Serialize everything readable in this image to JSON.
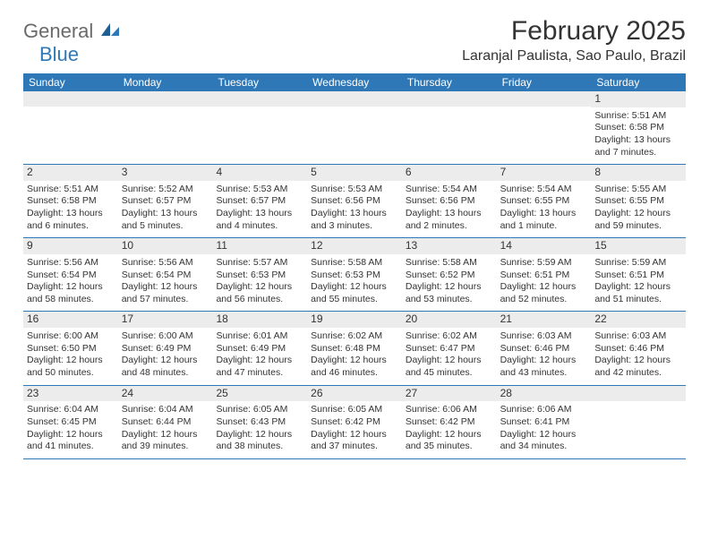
{
  "logo": {
    "text1": "General",
    "text2": "Blue"
  },
  "title": "February 2025",
  "location": "Laranjal Paulista, Sao Paulo, Brazil",
  "colors": {
    "header_bar": "#2f78b7",
    "daynum_bg": "#ececec",
    "text": "#333333",
    "logo_gray": "#6a6a6a",
    "logo_blue": "#2f78b7"
  },
  "weekdays": [
    "Sunday",
    "Monday",
    "Tuesday",
    "Wednesday",
    "Thursday",
    "Friday",
    "Saturday"
  ],
  "weeks": [
    [
      {
        "n": "",
        "sr": "",
        "ss": "",
        "dl1": "",
        "dl2": ""
      },
      {
        "n": "",
        "sr": "",
        "ss": "",
        "dl1": "",
        "dl2": ""
      },
      {
        "n": "",
        "sr": "",
        "ss": "",
        "dl1": "",
        "dl2": ""
      },
      {
        "n": "",
        "sr": "",
        "ss": "",
        "dl1": "",
        "dl2": ""
      },
      {
        "n": "",
        "sr": "",
        "ss": "",
        "dl1": "",
        "dl2": ""
      },
      {
        "n": "",
        "sr": "",
        "ss": "",
        "dl1": "",
        "dl2": ""
      },
      {
        "n": "1",
        "sr": "Sunrise: 5:51 AM",
        "ss": "Sunset: 6:58 PM",
        "dl1": "Daylight: 13 hours",
        "dl2": "and 7 minutes."
      }
    ],
    [
      {
        "n": "2",
        "sr": "Sunrise: 5:51 AM",
        "ss": "Sunset: 6:58 PM",
        "dl1": "Daylight: 13 hours",
        "dl2": "and 6 minutes."
      },
      {
        "n": "3",
        "sr": "Sunrise: 5:52 AM",
        "ss": "Sunset: 6:57 PM",
        "dl1": "Daylight: 13 hours",
        "dl2": "and 5 minutes."
      },
      {
        "n": "4",
        "sr": "Sunrise: 5:53 AM",
        "ss": "Sunset: 6:57 PM",
        "dl1": "Daylight: 13 hours",
        "dl2": "and 4 minutes."
      },
      {
        "n": "5",
        "sr": "Sunrise: 5:53 AM",
        "ss": "Sunset: 6:56 PM",
        "dl1": "Daylight: 13 hours",
        "dl2": "and 3 minutes."
      },
      {
        "n": "6",
        "sr": "Sunrise: 5:54 AM",
        "ss": "Sunset: 6:56 PM",
        "dl1": "Daylight: 13 hours",
        "dl2": "and 2 minutes."
      },
      {
        "n": "7",
        "sr": "Sunrise: 5:54 AM",
        "ss": "Sunset: 6:55 PM",
        "dl1": "Daylight: 13 hours",
        "dl2": "and 1 minute."
      },
      {
        "n": "8",
        "sr": "Sunrise: 5:55 AM",
        "ss": "Sunset: 6:55 PM",
        "dl1": "Daylight: 12 hours",
        "dl2": "and 59 minutes."
      }
    ],
    [
      {
        "n": "9",
        "sr": "Sunrise: 5:56 AM",
        "ss": "Sunset: 6:54 PM",
        "dl1": "Daylight: 12 hours",
        "dl2": "and 58 minutes."
      },
      {
        "n": "10",
        "sr": "Sunrise: 5:56 AM",
        "ss": "Sunset: 6:54 PM",
        "dl1": "Daylight: 12 hours",
        "dl2": "and 57 minutes."
      },
      {
        "n": "11",
        "sr": "Sunrise: 5:57 AM",
        "ss": "Sunset: 6:53 PM",
        "dl1": "Daylight: 12 hours",
        "dl2": "and 56 minutes."
      },
      {
        "n": "12",
        "sr": "Sunrise: 5:58 AM",
        "ss": "Sunset: 6:53 PM",
        "dl1": "Daylight: 12 hours",
        "dl2": "and 55 minutes."
      },
      {
        "n": "13",
        "sr": "Sunrise: 5:58 AM",
        "ss": "Sunset: 6:52 PM",
        "dl1": "Daylight: 12 hours",
        "dl2": "and 53 minutes."
      },
      {
        "n": "14",
        "sr": "Sunrise: 5:59 AM",
        "ss": "Sunset: 6:51 PM",
        "dl1": "Daylight: 12 hours",
        "dl2": "and 52 minutes."
      },
      {
        "n": "15",
        "sr": "Sunrise: 5:59 AM",
        "ss": "Sunset: 6:51 PM",
        "dl1": "Daylight: 12 hours",
        "dl2": "and 51 minutes."
      }
    ],
    [
      {
        "n": "16",
        "sr": "Sunrise: 6:00 AM",
        "ss": "Sunset: 6:50 PM",
        "dl1": "Daylight: 12 hours",
        "dl2": "and 50 minutes."
      },
      {
        "n": "17",
        "sr": "Sunrise: 6:00 AM",
        "ss": "Sunset: 6:49 PM",
        "dl1": "Daylight: 12 hours",
        "dl2": "and 48 minutes."
      },
      {
        "n": "18",
        "sr": "Sunrise: 6:01 AM",
        "ss": "Sunset: 6:49 PM",
        "dl1": "Daylight: 12 hours",
        "dl2": "and 47 minutes."
      },
      {
        "n": "19",
        "sr": "Sunrise: 6:02 AM",
        "ss": "Sunset: 6:48 PM",
        "dl1": "Daylight: 12 hours",
        "dl2": "and 46 minutes."
      },
      {
        "n": "20",
        "sr": "Sunrise: 6:02 AM",
        "ss": "Sunset: 6:47 PM",
        "dl1": "Daylight: 12 hours",
        "dl2": "and 45 minutes."
      },
      {
        "n": "21",
        "sr": "Sunrise: 6:03 AM",
        "ss": "Sunset: 6:46 PM",
        "dl1": "Daylight: 12 hours",
        "dl2": "and 43 minutes."
      },
      {
        "n": "22",
        "sr": "Sunrise: 6:03 AM",
        "ss": "Sunset: 6:46 PM",
        "dl1": "Daylight: 12 hours",
        "dl2": "and 42 minutes."
      }
    ],
    [
      {
        "n": "23",
        "sr": "Sunrise: 6:04 AM",
        "ss": "Sunset: 6:45 PM",
        "dl1": "Daylight: 12 hours",
        "dl2": "and 41 minutes."
      },
      {
        "n": "24",
        "sr": "Sunrise: 6:04 AM",
        "ss": "Sunset: 6:44 PM",
        "dl1": "Daylight: 12 hours",
        "dl2": "and 39 minutes."
      },
      {
        "n": "25",
        "sr": "Sunrise: 6:05 AM",
        "ss": "Sunset: 6:43 PM",
        "dl1": "Daylight: 12 hours",
        "dl2": "and 38 minutes."
      },
      {
        "n": "26",
        "sr": "Sunrise: 6:05 AM",
        "ss": "Sunset: 6:42 PM",
        "dl1": "Daylight: 12 hours",
        "dl2": "and 37 minutes."
      },
      {
        "n": "27",
        "sr": "Sunrise: 6:06 AM",
        "ss": "Sunset: 6:42 PM",
        "dl1": "Daylight: 12 hours",
        "dl2": "and 35 minutes."
      },
      {
        "n": "28",
        "sr": "Sunrise: 6:06 AM",
        "ss": "Sunset: 6:41 PM",
        "dl1": "Daylight: 12 hours",
        "dl2": "and 34 minutes."
      },
      {
        "n": "",
        "sr": "",
        "ss": "",
        "dl1": "",
        "dl2": ""
      }
    ]
  ]
}
